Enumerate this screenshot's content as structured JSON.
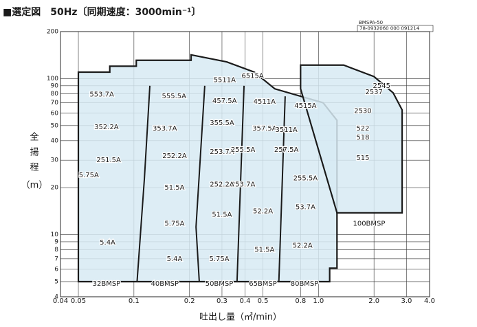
{
  "chart_data": {
    "type": "selection-map",
    "title": "■選定図　50Hz〔同期速度：3000min⁻¹〕",
    "code": "BMSPA-50",
    "doc_number": "78-0932060 000 091214",
    "y_label": [
      "全",
      "揚",
      "程",
      "（m）"
    ],
    "x_label": "吐出し量（㎥/min）",
    "log_x": true,
    "log_y": true,
    "grid": true,
    "fill_color": "#d7eaf3",
    "line_color": "#1a1a1a",
    "xlim": [
      0.04,
      4.0
    ],
    "ylim": [
      4,
      200
    ],
    "xticks": [
      0.04,
      0.05,
      0.1,
      0.2,
      0.3,
      0.4,
      0.5,
      0.8,
      {
        "value": 1,
        "label": "1.0"
      },
      {
        "value": 2,
        "label": "2.0"
      },
      {
        "value": 3,
        "label": "3.0"
      },
      {
        "value": 4,
        "label": "4.0"
      }
    ],
    "yticks": [
      4,
      5,
      6,
      7,
      8,
      9,
      10,
      20,
      30,
      40,
      50,
      60,
      70,
      80,
      90,
      100,
      200
    ],
    "regions": [
      {
        "x": [
          0.05,
          0.05,
          0.074,
          0.074,
          0.103,
          0.103,
          0.204,
          0.204,
          0.318,
          0.449,
          0.58,
          1.06,
          1.26,
          1.26,
          1.15,
          1.15
        ],
        "y": [
          5,
          110,
          110,
          120,
          120,
          131,
          131,
          142,
          128,
          110,
          86,
          70,
          54,
          6.1,
          6.1,
          5
        ]
      },
      {
        "x": [
          0.8,
          0.8,
          1.37,
          2.0,
          2.54,
          2.84,
          2.84,
          1.26
        ],
        "y": [
          86,
          122,
          122,
          103,
          81,
          63,
          13.8,
          13.8
        ]
      }
    ],
    "dividers": [
      {
        "x": [
          0.122,
          0.114,
          0.104
        ],
        "y": [
          90,
          23,
          5
        ]
      },
      {
        "x": [
          0.242,
          0.217,
          0.226
        ],
        "y": [
          90,
          11.2,
          5
        ]
      },
      {
        "x": [
          0.395,
          0.362
        ],
        "y": [
          90,
          5
        ]
      },
      {
        "x": [
          0.66,
          0.61
        ],
        "y": [
          77,
          5
        ]
      }
    ],
    "labels": [
      {
        "text": "553.7A",
        "x": 0.067,
        "y": 79
      },
      {
        "text": "555.5A",
        "x": 0.165,
        "y": 77
      },
      {
        "text": "5511A",
        "x": 0.31,
        "y": 98
      },
      {
        "text": "6515A",
        "x": 0.44,
        "y": 104
      },
      {
        "text": "457.5A",
        "x": 0.31,
        "y": 72
      },
      {
        "text": "4511A",
        "x": 0.51,
        "y": 71
      },
      {
        "text": "4515A",
        "x": 0.85,
        "y": 67
      },
      {
        "text": "2545",
        "x": 2.2,
        "y": 90
      },
      {
        "text": "2537",
        "x": 2.0,
        "y": 82
      },
      {
        "text": "2530",
        "x": 1.74,
        "y": 62
      },
      {
        "text": "522",
        "x": 1.74,
        "y": 48
      },
      {
        "text": "518",
        "x": 1.74,
        "y": 42
      },
      {
        "text": "515",
        "x": 1.74,
        "y": 31
      },
      {
        "text": "352.2A",
        "x": 0.071,
        "y": 49
      },
      {
        "text": "353.7A",
        "x": 0.147,
        "y": 48
      },
      {
        "text": "355.5A",
        "x": 0.3,
        "y": 52
      },
      {
        "text": "357.5A",
        "x": 0.51,
        "y": 48
      },
      {
        "text": "3511A",
        "x": 0.67,
        "y": 47
      },
      {
        "text": "251.5A",
        "x": 0.073,
        "y": 30
      },
      {
        "text": "252.2A",
        "x": 0.166,
        "y": 32
      },
      {
        "text": "253.7A",
        "x": 0.3,
        "y": 34
      },
      {
        "text": "255.5A",
        "x": 0.39,
        "y": 35
      },
      {
        "text": "257.5A",
        "x": 0.67,
        "y": 35
      },
      {
        "text": "255.5A",
        "x": 0.85,
        "y": 23
      },
      {
        "text": "253.7A",
        "x": 0.39,
        "y": 21
      },
      {
        "text": "252.2A",
        "x": 0.3,
        "y": 21
      },
      {
        "text": "51.5A",
        "x": 0.166,
        "y": 20
      },
      {
        "text": "5.75A",
        "x": 0.057,
        "y": 24
      },
      {
        "text": "5.75A",
        "x": 0.166,
        "y": 11.8
      },
      {
        "text": "51.5A",
        "x": 0.3,
        "y": 13.4
      },
      {
        "text": "52.2A",
        "x": 0.5,
        "y": 14.1
      },
      {
        "text": "53.7A",
        "x": 0.85,
        "y": 15
      },
      {
        "text": "5.4A",
        "x": 0.072,
        "y": 8.9
      },
      {
        "text": "5.4A",
        "x": 0.166,
        "y": 7
      },
      {
        "text": "5.75A",
        "x": 0.29,
        "y": 7
      },
      {
        "text": "51.5A",
        "x": 0.51,
        "y": 8
      },
      {
        "text": "52.2A",
        "x": 0.82,
        "y": 8.5
      },
      {
        "text": "32BMSP",
        "x": 0.071,
        "y": 4.85
      },
      {
        "text": "40BMSP",
        "x": 0.147,
        "y": 4.85
      },
      {
        "text": "50BMSP",
        "x": 0.29,
        "y": 4.85
      },
      {
        "text": "65BMSP",
        "x": 0.5,
        "y": 4.85
      },
      {
        "text": "80BMSP",
        "x": 0.84,
        "y": 4.85
      },
      {
        "text": "100BMSP",
        "x": 1.88,
        "y": 11.8
      }
    ]
  }
}
